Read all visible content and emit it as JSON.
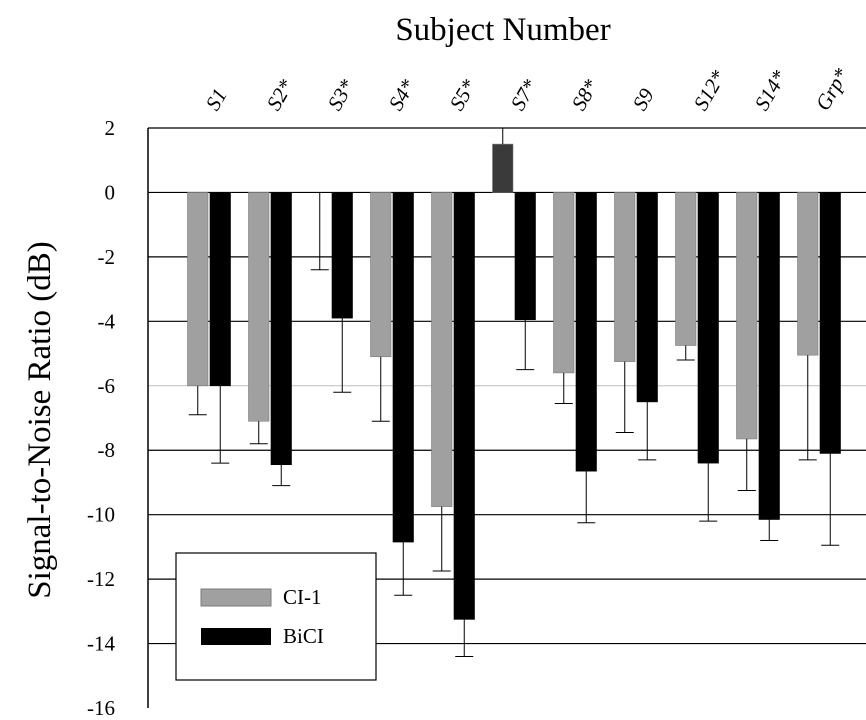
{
  "chart_data": {
    "type": "bar",
    "title": "Subject Number",
    "xlabel": "",
    "ylabel": "Signal-to-Noise Ratio (dB)",
    "ylim": [
      -16,
      2
    ],
    "yticks": [
      "2",
      "0",
      "-2",
      "-4",
      "-6",
      "-8",
      "-10",
      "-12",
      "-14",
      "-16"
    ],
    "categories": [
      "S1",
      "S2*",
      "S3*",
      "S4*",
      "S5*",
      "S7*",
      "S8*",
      "S9",
      "S12*",
      "S14*",
      "Grp*"
    ],
    "series": [
      {
        "name": "CI-1",
        "color": "#a0a0a0",
        "values": [
          -6.0,
          -7.1,
          null,
          -5.1,
          -9.75,
          1.5,
          -5.6,
          -5.25,
          -4.75,
          -7.65,
          -5.05
        ],
        "error": [
          0.9,
          0.7,
          2.4,
          2.0,
          2.0,
          0.5,
          0.95,
          2.2,
          0.45,
          1.6,
          3.25
        ]
      },
      {
        "name": "BiCI",
        "color": "#000000",
        "values": [
          -6.0,
          -8.45,
          -3.9,
          -10.85,
          -13.25,
          -3.95,
          -8.65,
          -6.5,
          -8.4,
          -10.15,
          -8.1
        ],
        "error": [
          2.4,
          0.65,
          2.3,
          1.65,
          1.15,
          1.55,
          1.6,
          1.8,
          1.8,
          0.65,
          2.85
        ]
      }
    ],
    "grid": true,
    "legend_position": "bottom-left"
  }
}
